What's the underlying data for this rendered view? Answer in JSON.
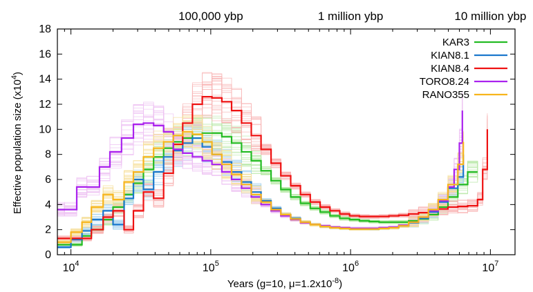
{
  "chart_data": {
    "type": "line",
    "xlabel": "Years (g=10, μ=1.2x10",
    "xlabel_exp": "-8",
    "xlabel_close": ")",
    "ylabel": "Effective population size (x10",
    "ylabel_exp": "4",
    "ylabel_close": ")",
    "x_scale": "log",
    "xlim": [
      8000,
      15000000
    ],
    "ylim": [
      0,
      18
    ],
    "grid": false,
    "legend_position": "top-right",
    "x_ticks": [
      {
        "base": "10",
        "exp": "4",
        "value": 10000
      },
      {
        "base": "10",
        "exp": "5",
        "value": 100000
      },
      {
        "base": "10",
        "exp": "6",
        "value": 1000000
      },
      {
        "base": "10",
        "exp": "7",
        "value": 10000000
      }
    ],
    "y_ticks": [
      0,
      2,
      4,
      6,
      8,
      10,
      12,
      14,
      16,
      18
    ],
    "top_labels": [
      {
        "text": "100,000 ybp",
        "x": 100000
      },
      {
        "text": "1 million ybp",
        "x": 1000000
      },
      {
        "text": "10 million ybp",
        "x": 10000000
      }
    ],
    "series": [
      {
        "name": "KAR3",
        "color": "#22bb22",
        "bootstrap_color": "#b8e8a8",
        "x": [
          8000,
          10000,
          12000,
          14000,
          17000,
          20000,
          24000,
          28000,
          33000,
          39000,
          46000,
          54000,
          63000,
          74000,
          87000,
          102000,
          120000,
          141000,
          166000,
          195000,
          229000,
          270000,
          317000,
          373000,
          438000,
          515000,
          606000,
          712000,
          837000,
          984000,
          1157000,
          1360000,
          1600000,
          1880000,
          2210000,
          2600000,
          3060000,
          3600000,
          4230000,
          4970000,
          5850000,
          6880000,
          8090000
        ],
        "y": [
          0.8,
          0.8,
          1.5,
          2.0,
          2.8,
          3.8,
          4.8,
          5.7,
          6.8,
          7.8,
          8.5,
          9.0,
          9.3,
          9.6,
          9.7,
          9.7,
          9.4,
          8.9,
          8.2,
          7.5,
          6.7,
          5.9,
          5.2,
          4.6,
          4.1,
          3.7,
          3.4,
          3.1,
          2.9,
          2.8,
          2.7,
          2.65,
          2.6,
          2.6,
          2.6,
          2.7,
          2.85,
          3.2,
          3.8,
          4.6,
          5.6,
          6.6,
          6.6
        ]
      },
      {
        "name": "KIAN8.1",
        "color": "#1a77cc",
        "bootstrap_color": "#a6d2ef",
        "x": [
          8000,
          10000,
          12000,
          14000,
          17000,
          20000,
          24000,
          28000,
          33000,
          39000,
          46000,
          54000,
          63000,
          74000,
          87000,
          102000,
          120000,
          141000,
          166000,
          195000,
          229000,
          270000,
          317000,
          373000,
          438000,
          515000,
          606000,
          712000,
          837000,
          984000,
          1157000,
          1360000,
          1600000,
          1880000,
          2210000,
          2600000,
          3060000,
          3600000,
          4230000,
          4970000,
          5850000,
          6400000
        ],
        "y": [
          0.6,
          1.2,
          1.9,
          2.8,
          3.5,
          2.4,
          4.5,
          6.0,
          5.2,
          6.6,
          7.8,
          8.3,
          8.9,
          9.3,
          8.6,
          8.0,
          7.4,
          6.6,
          5.8,
          5.0,
          4.3,
          3.7,
          3.2,
          2.9,
          2.6,
          2.4,
          2.25,
          2.15,
          2.1,
          2.05,
          2.05,
          2.05,
          2.1,
          2.15,
          2.3,
          2.55,
          2.9,
          3.4,
          4.2,
          5.3,
          6.2,
          8.0
        ]
      },
      {
        "name": "KIAN8.4",
        "color": "#ee1111",
        "bootstrap_color": "#f8b4b4",
        "x": [
          8000,
          10000,
          12000,
          14000,
          17000,
          20000,
          24000,
          28000,
          33000,
          39000,
          46000,
          54000,
          63000,
          74000,
          87000,
          102000,
          120000,
          141000,
          166000,
          195000,
          229000,
          270000,
          317000,
          373000,
          438000,
          515000,
          606000,
          712000,
          837000,
          984000,
          1157000,
          1360000,
          1600000,
          1880000,
          2210000,
          2600000,
          3060000,
          3600000,
          4230000,
          4970000,
          5850000,
          6880000,
          8090000,
          8800000,
          9500000
        ],
        "y": [
          1.3,
          1.3,
          1.3,
          2.0,
          3.0,
          3.5,
          2.0,
          3.5,
          5.0,
          4.5,
          6.5,
          8.8,
          10.5,
          12.0,
          12.6,
          12.5,
          12.2,
          11.5,
          10.5,
          9.5,
          8.4,
          7.3,
          6.3,
          5.5,
          4.8,
          4.2,
          3.8,
          3.5,
          3.25,
          3.1,
          3.05,
          3.05,
          3.05,
          3.1,
          3.15,
          3.25,
          3.35,
          3.5,
          3.65,
          3.8,
          3.85,
          3.9,
          4.4,
          6.8,
          10.0
        ]
      },
      {
        "name": "TORO8.24",
        "color": "#aa22ee",
        "bootstrap_color": "#eec2f3",
        "x": [
          8000,
          9000,
          11000,
          13000,
          16000,
          19000,
          23000,
          28000,
          33000,
          39000,
          46000,
          54000,
          63000,
          74000,
          87000,
          102000,
          120000,
          141000,
          166000,
          195000,
          229000,
          270000,
          317000,
          373000,
          438000,
          515000,
          606000,
          712000,
          837000,
          984000,
          1157000,
          1360000,
          1600000,
          1880000,
          2210000,
          2600000,
          3060000,
          3600000,
          4230000,
          4970000,
          5500000,
          6000000,
          6300000
        ],
        "y": [
          3.6,
          3.6,
          5.4,
          5.4,
          7.0,
          8.2,
          9.3,
          10.4,
          10.5,
          10.3,
          9.8,
          8.4,
          8.1,
          7.8,
          7.5,
          7.2,
          6.6,
          6.0,
          5.3,
          4.6,
          4.0,
          3.5,
          3.1,
          2.8,
          2.55,
          2.4,
          2.3,
          2.2,
          2.15,
          2.1,
          2.1,
          2.1,
          2.15,
          2.2,
          2.35,
          2.6,
          3.0,
          3.5,
          4.3,
          5.4,
          6.8,
          8.9,
          11.5
        ]
      },
      {
        "name": "RANO355",
        "color": "#f7b51c",
        "bootstrap_color": "#f6df9a",
        "x": [
          8000,
          10000,
          12000,
          14000,
          17000,
          20000,
          24000,
          28000,
          33000,
          39000,
          46000,
          54000,
          63000,
          74000,
          87000,
          102000,
          120000,
          141000,
          166000,
          195000,
          229000,
          270000,
          317000,
          373000,
          438000,
          515000,
          606000,
          712000,
          837000,
          984000,
          1157000,
          1360000,
          1600000,
          1880000,
          2210000,
          2600000,
          3060000,
          3600000,
          4230000,
          4970000,
          5850000,
          6400000
        ],
        "y": [
          1.0,
          1.8,
          2.6,
          3.8,
          4.8,
          4.4,
          5.8,
          6.6,
          7.8,
          8.5,
          9.0,
          9.5,
          9.8,
          9.6,
          9.0,
          8.0,
          7.2,
          6.4,
          5.6,
          4.8,
          4.2,
          3.6,
          3.2,
          2.85,
          2.6,
          2.4,
          2.25,
          2.15,
          2.1,
          2.05,
          2.05,
          2.05,
          2.1,
          2.15,
          2.3,
          2.6,
          3.0,
          3.6,
          4.4,
          5.6,
          7.2,
          9.0
        ]
      }
    ]
  }
}
